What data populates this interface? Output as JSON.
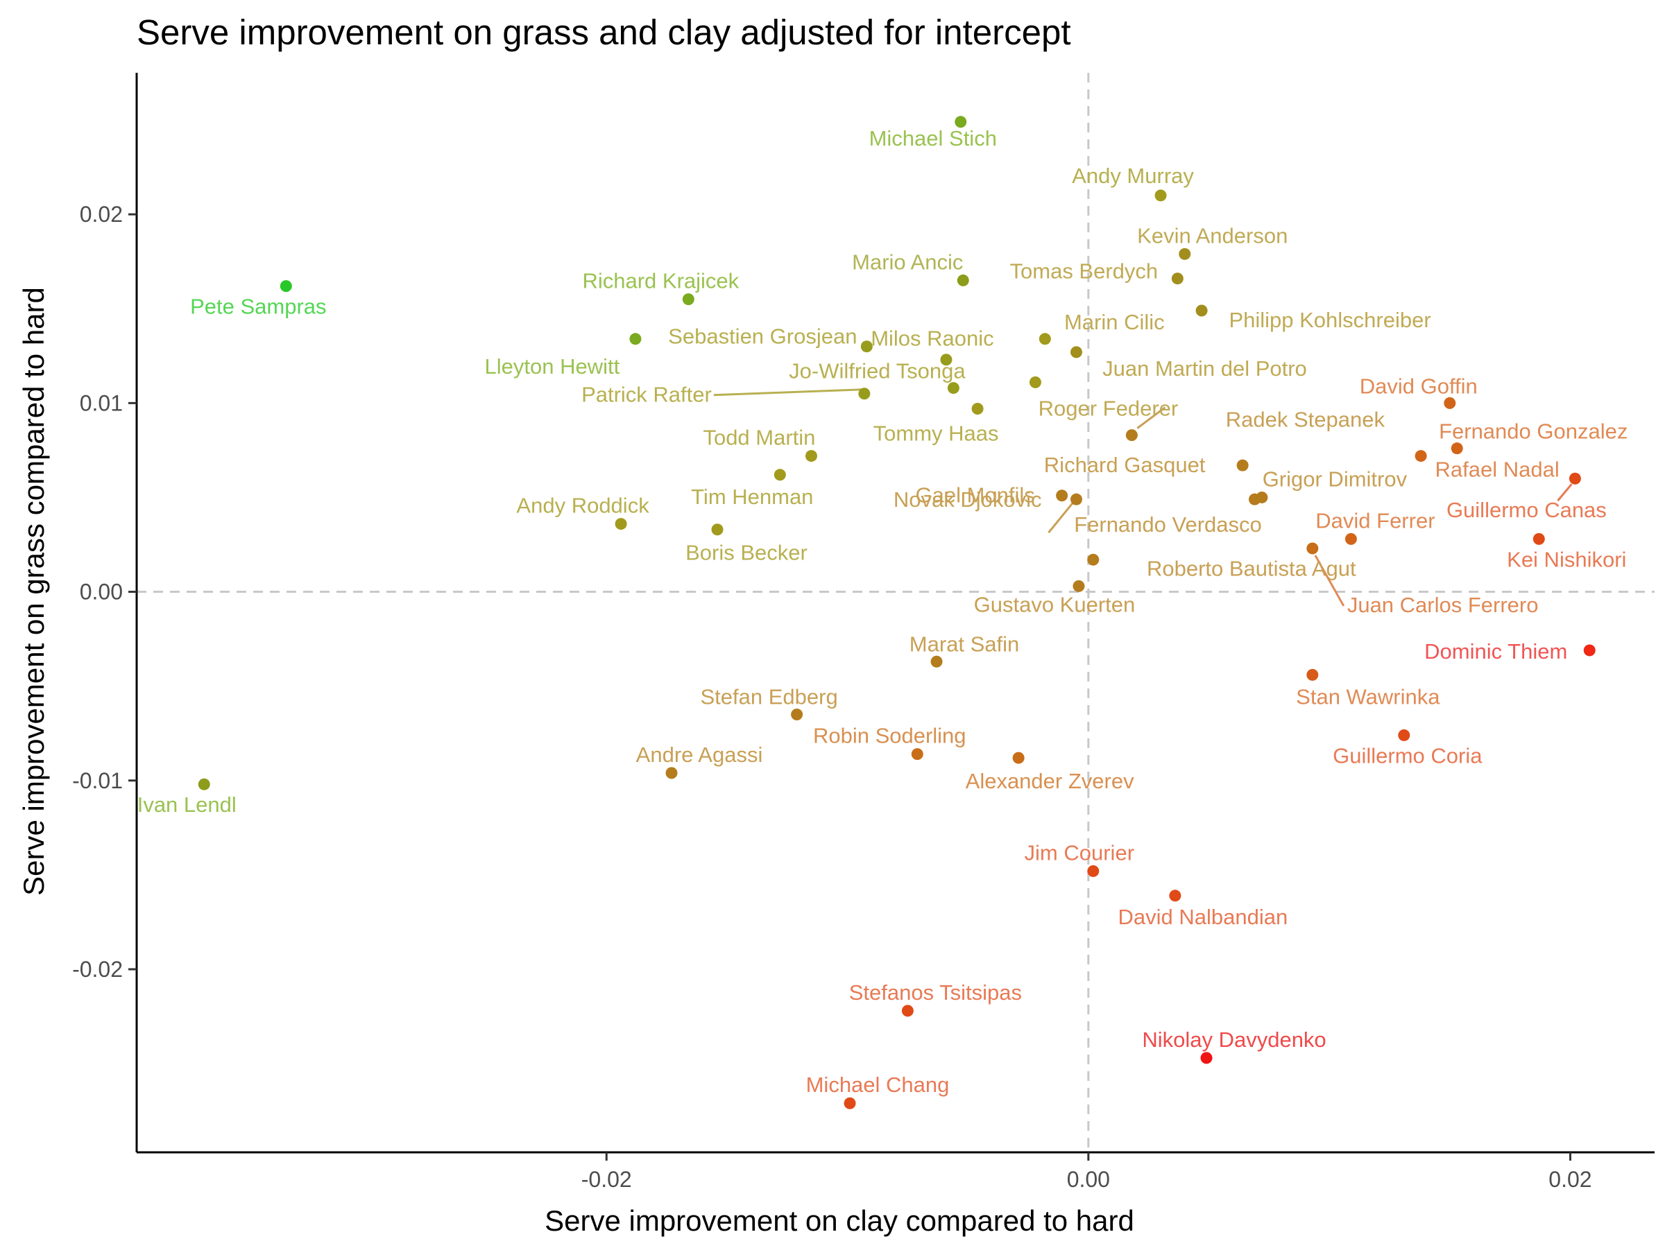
{
  "chart_data": {
    "type": "scatter",
    "title": "Serve improvement on grass and clay adjusted for intercept",
    "xlabel": "Serve improvement on clay compared to hard",
    "ylabel": "Serve improvement on grass compared to hard",
    "xlim": [
      -0.0395,
      0.0235
    ],
    "ylim": [
      -0.0297,
      0.0275
    ],
    "xticks": [
      -0.02,
      0.0,
      0.02
    ],
    "xtick_labels": [
      "-0.02",
      "0.00",
      "0.02"
    ],
    "yticks": [
      -0.02,
      -0.01,
      0.0,
      0.01,
      0.02
    ],
    "ytick_labels": [
      "-0.02",
      "-0.01",
      "0.00",
      "0.01",
      "0.02"
    ],
    "grid": false,
    "reference_lines": {
      "x": 0.0,
      "y": 0.0,
      "style": "dashed"
    },
    "points": [
      {
        "name": "Michael Stich",
        "x": -0.0053,
        "y": 0.0249,
        "color": "#7aaa1e",
        "label_color": "#9ac250"
      },
      {
        "name": "Andy Murray",
        "x": 0.003,
        "y": 0.021,
        "color": "#a29a1c",
        "label_color": "#b8b050"
      },
      {
        "name": "Kevin Anderson",
        "x": 0.004,
        "y": 0.0179,
        "color": "#a28e1c",
        "label_color": "#c0aa55"
      },
      {
        "name": "Pete Sampras",
        "x": -0.0333,
        "y": 0.0162,
        "color": "#28c828",
        "label_color": "#55d655"
      },
      {
        "name": "Mario Ancic",
        "x": -0.0052,
        "y": 0.0165,
        "color": "#8e9c1c",
        "label_color": "#b0b455"
      },
      {
        "name": "Tomas Berdych",
        "x": 0.0037,
        "y": 0.0166,
        "color": "#a28e1c",
        "label_color": "#c0aa55"
      },
      {
        "name": "Richard Krajicek",
        "x": -0.0166,
        "y": 0.0155,
        "color": "#7aaa1e",
        "label_color": "#9ac250"
      },
      {
        "name": "Philipp Kohlschreiber",
        "x": 0.0047,
        "y": 0.0149,
        "color": "#a28e1c",
        "label_color": "#c0aa55"
      },
      {
        "name": "Lleyton Hewitt",
        "x": -0.0188,
        "y": 0.0134,
        "color": "#7aaa1e",
        "label_color": "#9ac250"
      },
      {
        "name": "Sebastien Grosjean",
        "x": -0.0092,
        "y": 0.013,
        "color": "#989c1c",
        "label_color": "#b8b050"
      },
      {
        "name": "Marin Cilic",
        "x": -0.0018,
        "y": 0.0134,
        "color": "#a29a1c",
        "label_color": "#c0aa55"
      },
      {
        "name": "Milos Raonic",
        "x": -0.0059,
        "y": 0.0123,
        "color": "#989c1c",
        "label_color": "#b8b050"
      },
      {
        "name": "Juan Martin del Potro",
        "x": -0.0005,
        "y": 0.0127,
        "color": "#a28e1c",
        "label_color": "#c0aa55"
      },
      {
        "name": "Jo-Wilfried Tsonga",
        "x": -0.0056,
        "y": 0.0108,
        "color": "#989c1c",
        "label_color": "#b8b050"
      },
      {
        "name": "Patrick Rafter",
        "x": -0.0093,
        "y": 0.0105,
        "color": "#989c1c",
        "label_color": "#b8b050"
      },
      {
        "name": "Roger Federer",
        "x": -0.0022,
        "y": 0.0111,
        "color": "#a29a1c",
        "label_color": "#c0aa55"
      },
      {
        "name": "David Goffin",
        "x": 0.015,
        "y": 0.01,
        "color": "#d26418",
        "label_color": "#e08a55"
      },
      {
        "name": "Tommy Haas",
        "x": -0.0046,
        "y": 0.0097,
        "color": "#a29a1c",
        "label_color": "#b8b050"
      },
      {
        "name": "Radek Stepanek",
        "x": 0.0018,
        "y": 0.0083,
        "color": "#b47c1c",
        "label_color": "#c8a055"
      },
      {
        "name": "Fernando Gonzalez",
        "x": 0.0153,
        "y": 0.0076,
        "color": "#d26418",
        "label_color": "#e08a55"
      },
      {
        "name": "Todd Martin",
        "x": -0.0115,
        "y": 0.0072,
        "color": "#a29a1c",
        "label_color": "#b8b050"
      },
      {
        "name": "Rafael Nadal",
        "x": 0.0138,
        "y": 0.0072,
        "color": "#d26418",
        "label_color": "#e08a55"
      },
      {
        "name": "Richard Gasquet",
        "x": 0.0064,
        "y": 0.0067,
        "color": "#b47c1c",
        "label_color": "#c8a055"
      },
      {
        "name": "Tim Henman",
        "x": -0.0128,
        "y": 0.0062,
        "color": "#a29a1c",
        "label_color": "#b8b050"
      },
      {
        "name": "Grigor Dimitrov",
        "x": 0.0072,
        "y": 0.005,
        "color": "#b47c1c",
        "label_color": "#c8a055"
      },
      {
        "name": "Fernando Verdasco",
        "x": 0.0069,
        "y": 0.0049,
        "color": "#b47c1c",
        "label_color": "#c8a055"
      },
      {
        "name": "Gael Monfils",
        "x": -0.0011,
        "y": 0.0051,
        "color": "#b47c1c",
        "label_color": "#c8a055"
      },
      {
        "name": "Novak Djokovic",
        "x": -0.0005,
        "y": 0.0049,
        "color": "#b47c1c",
        "label_color": "#c8a055"
      },
      {
        "name": "Guillermo Canas",
        "x": 0.0202,
        "y": 0.006,
        "color": "#e04a16",
        "label_color": "#e87a55"
      },
      {
        "name": "Andy Roddick",
        "x": -0.0194,
        "y": 0.0036,
        "color": "#a29a1c",
        "label_color": "#b8b050"
      },
      {
        "name": "Boris Becker",
        "x": -0.0154,
        "y": 0.0033,
        "color": "#a29a1c",
        "label_color": "#b8b050"
      },
      {
        "name": "Kei Nishikori",
        "x": 0.0187,
        "y": 0.0028,
        "color": "#e04a16",
        "label_color": "#e87a55"
      },
      {
        "name": "David Ferrer",
        "x": 0.0109,
        "y": 0.0028,
        "color": "#d26418",
        "label_color": "#e08a55"
      },
      {
        "name": "Juan Carlos Ferrero",
        "x": 0.0093,
        "y": 0.0023,
        "color": "#c86e18",
        "label_color": "#e08a55"
      },
      {
        "name": "Roberto Bautista Agut",
        "x": 0.0002,
        "y": 0.0017,
        "color": "#b47c1c",
        "label_color": "#c8a055"
      },
      {
        "name": "Gustavo Kuerten",
        "x": -0.0004,
        "y": 0.0003,
        "color": "#b47c1c",
        "label_color": "#c8a055"
      },
      {
        "name": "Dominic Thiem",
        "x": 0.0208,
        "y": -0.0031,
        "color": "#f02814",
        "label_color": "#f05555"
      },
      {
        "name": "Marat Safin",
        "x": -0.0063,
        "y": -0.0037,
        "color": "#b47c1c",
        "label_color": "#c8a055"
      },
      {
        "name": "Stan Wawrinka",
        "x": 0.0093,
        "y": -0.0044,
        "color": "#d85a18",
        "label_color": "#e08a55"
      },
      {
        "name": "Stefan Edberg",
        "x": -0.0121,
        "y": -0.0065,
        "color": "#b47c1c",
        "label_color": "#c8a055"
      },
      {
        "name": "Guillermo Coria",
        "x": 0.0131,
        "y": -0.0076,
        "color": "#e04a16",
        "label_color": "#e87a55"
      },
      {
        "name": "Robin Soderling",
        "x": -0.0071,
        "y": -0.0086,
        "color": "#c86e18",
        "label_color": "#d89050"
      },
      {
        "name": "Alexander Zverev",
        "x": -0.0029,
        "y": -0.0088,
        "color": "#c86e18",
        "label_color": "#d89050"
      },
      {
        "name": "Andre Agassi",
        "x": -0.0173,
        "y": -0.0096,
        "color": "#b47c1c",
        "label_color": "#c8a055"
      },
      {
        "name": "Ivan Lendl",
        "x": -0.0367,
        "y": -0.0102,
        "color": "#8e9c1c",
        "label_color": "#9ac250"
      },
      {
        "name": "Jim Courier",
        "x": 0.0002,
        "y": -0.0148,
        "color": "#e04a16",
        "label_color": "#e87a55"
      },
      {
        "name": "David Nalbandian",
        "x": 0.0036,
        "y": -0.0161,
        "color": "#e04a16",
        "label_color": "#e87a55"
      },
      {
        "name": "Stefanos Tsitsipas",
        "x": -0.0075,
        "y": -0.0222,
        "color": "#e04a16",
        "label_color": "#e87a55"
      },
      {
        "name": "Nikolay Davydenko",
        "x": 0.0049,
        "y": -0.0247,
        "color": "#f01414",
        "label_color": "#f04a4a"
      },
      {
        "name": "Michael Chang",
        "x": -0.0099,
        "y": -0.0271,
        "color": "#e04a16",
        "label_color": "#e87a55"
      }
    ]
  }
}
